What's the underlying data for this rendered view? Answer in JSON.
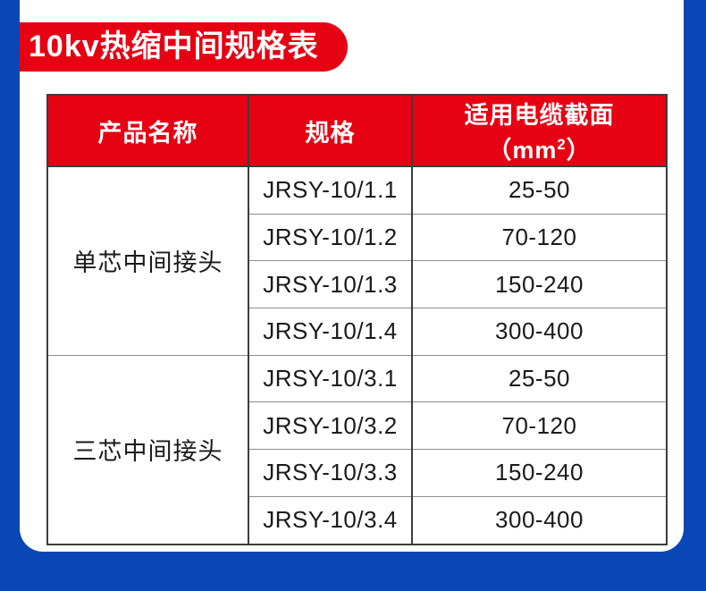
{
  "colors": {
    "background_blue": "#0847b5",
    "card_white": "#ffffff",
    "accent_red": "#e60113",
    "header_text": "#ffffff",
    "body_text": "#1a1a1a",
    "border_dark": "#3d3d3d",
    "border_light": "#8c8c8c"
  },
  "title_badge": {
    "label": "10kv热缩中间规格表"
  },
  "table": {
    "header": {
      "product": "产品名称",
      "spec": "规格",
      "section_prefix": "适用电缆截面（mm",
      "section_sup": "2",
      "section_suffix": "）"
    },
    "groups": [
      {
        "product": "单芯中间接头",
        "rows": [
          {
            "spec": "JRSY-10/1.1",
            "section": "25-50"
          },
          {
            "spec": "JRSY-10/1.2",
            "section": "70-120"
          },
          {
            "spec": "JRSY-10/1.3",
            "section": "150-240"
          },
          {
            "spec": "JRSY-10/1.4",
            "section": "300-400"
          }
        ]
      },
      {
        "product": "三芯中间接头",
        "rows": [
          {
            "spec": "JRSY-10/3.1",
            "section": "25-50"
          },
          {
            "spec": "JRSY-10/3.2",
            "section": "70-120"
          },
          {
            "spec": "JRSY-10/3.3",
            "section": "150-240"
          },
          {
            "spec": "JRSY-10/3.4",
            "section": "300-400"
          }
        ]
      }
    ]
  }
}
